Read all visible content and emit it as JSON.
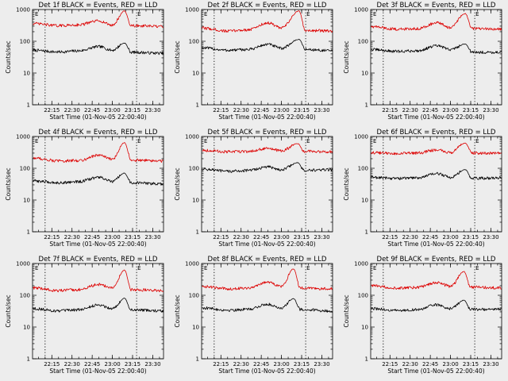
{
  "plot_title_suffix": "BLACK = Events, RED = LLD",
  "ylabel": "Counts/sec",
  "xlabel": "Start Time (01-Nov-05 22:00:40)",
  "marker_label": "E",
  "colors": {
    "background": "#ededed",
    "events": "#000000",
    "lld": "#dd0000"
  },
  "chart_data": [
    {
      "type": "line",
      "title": "Det 1f BLACK = Events, RED = LLD",
      "xlabel": "Start Time (01-Nov-05 22:00:40)",
      "ylabel": "Counts/sec",
      "x_ticks": [
        "22:15",
        "22:30",
        "22:45",
        "23:00",
        "23:15",
        "23:30"
      ],
      "y_ticks": [
        "1",
        "10",
        "100",
        "1000"
      ],
      "y_scale": "log",
      "ylim": [
        1,
        1000
      ],
      "xlim": [
        "22:00:40",
        "23:38"
      ],
      "vertical_markers": [
        "22:10",
        "23:18"
      ],
      "series": [
        {
          "color": "#000000",
          "peak_time": "23:09",
          "values": [
            {
              "x": "22:01",
              "y": 52
            },
            {
              "x": "22:20",
              "y": 46
            },
            {
              "x": "22:35",
              "y": 50
            },
            {
              "x": "22:50",
              "y": 68
            },
            {
              "x": "23:00",
              "y": 52
            },
            {
              "x": "23:09",
              "y": 88
            },
            {
              "x": "23:14",
              "y": 45
            },
            {
              "x": "23:38",
              "y": 42
            }
          ]
        },
        {
          "color": "#dd0000",
          "peak_time": "23:09",
          "values": [
            {
              "x": "22:01",
              "y": 360
            },
            {
              "x": "22:20",
              "y": 310
            },
            {
              "x": "22:35",
              "y": 330
            },
            {
              "x": "22:50",
              "y": 440
            },
            {
              "x": "23:00",
              "y": 320
            },
            {
              "x": "23:09",
              "y": 900
            },
            {
              "x": "23:14",
              "y": 310
            },
            {
              "x": "23:38",
              "y": 290
            }
          ]
        }
      ]
    },
    {
      "type": "line",
      "title": "Det 2f BLACK = Events, RED = LLD",
      "xlabel": "Start Time (01-Nov-05 22:00:40)",
      "ylabel": "Counts/sec",
      "x_ticks": [
        "22:15",
        "22:30",
        "22:45",
        "23:00",
        "23:15",
        "23:30"
      ],
      "y_ticks": [
        "1",
        "10",
        "100",
        "1000"
      ],
      "y_scale": "log",
      "ylim": [
        1,
        1000
      ],
      "xlim": [
        "22:00:40",
        "23:38"
      ],
      "vertical_markers": [
        "22:10",
        "23:18"
      ],
      "series": [
        {
          "color": "#000000",
          "peak_time": "23:13",
          "values": [
            {
              "x": "22:01",
              "y": 62
            },
            {
              "x": "22:20",
              "y": 52
            },
            {
              "x": "22:35",
              "y": 55
            },
            {
              "x": "22:50",
              "y": 80
            },
            {
              "x": "23:00",
              "y": 60
            },
            {
              "x": "23:13",
              "y": 115
            },
            {
              "x": "23:18",
              "y": 55
            },
            {
              "x": "23:38",
              "y": 50
            }
          ]
        },
        {
          "color": "#dd0000",
          "peak_time": "23:13",
          "values": [
            {
              "x": "22:01",
              "y": 260
            },
            {
              "x": "22:20",
              "y": 210
            },
            {
              "x": "22:35",
              "y": 230
            },
            {
              "x": "22:50",
              "y": 380
            },
            {
              "x": "23:00",
              "y": 260
            },
            {
              "x": "23:13",
              "y": 900
            },
            {
              "x": "23:18",
              "y": 220
            },
            {
              "x": "23:38",
              "y": 210
            }
          ]
        }
      ]
    },
    {
      "type": "line",
      "title": "Det 3f BLACK = Events, RED = LLD",
      "xlabel": "Start Time (01-Nov-05 22:00:40)",
      "ylabel": "Counts/sec",
      "x_ticks": [
        "22:15",
        "22:30",
        "22:45",
        "23:00",
        "23:15",
        "23:30"
      ],
      "y_ticks": [
        "1",
        "10",
        "100",
        "1000"
      ],
      "y_scale": "log",
      "ylim": [
        1,
        1000
      ],
      "xlim": [
        "22:00:40",
        "23:38"
      ],
      "vertical_markers": [
        "22:10",
        "23:18"
      ],
      "series": [
        {
          "color": "#000000",
          "peak_time": "23:11",
          "values": [
            {
              "x": "22:01",
              "y": 55
            },
            {
              "x": "22:20",
              "y": 48
            },
            {
              "x": "22:35",
              "y": 50
            },
            {
              "x": "22:50",
              "y": 72
            },
            {
              "x": "23:00",
              "y": 55
            },
            {
              "x": "23:11",
              "y": 82
            },
            {
              "x": "23:16",
              "y": 45
            },
            {
              "x": "23:38",
              "y": 45
            }
          ]
        },
        {
          "color": "#dd0000",
          "peak_time": "23:11",
          "values": [
            {
              "x": "22:01",
              "y": 290
            },
            {
              "x": "22:20",
              "y": 240
            },
            {
              "x": "22:35",
              "y": 250
            },
            {
              "x": "22:50",
              "y": 380
            },
            {
              "x": "23:00",
              "y": 270
            },
            {
              "x": "23:11",
              "y": 750
            },
            {
              "x": "23:16",
              "y": 250
            },
            {
              "x": "23:38",
              "y": 240
            }
          ]
        }
      ]
    },
    {
      "type": "line",
      "title": "Det 4f BLACK = Events, RED = LLD",
      "xlabel": "Start Time (01-Nov-05 22:00:40)",
      "ylabel": "Counts/sec",
      "x_ticks": [
        "22:15",
        "22:30",
        "22:45",
        "23:00",
        "23:15",
        "23:30"
      ],
      "y_ticks": [
        "1",
        "10",
        "100",
        "1000"
      ],
      "y_scale": "log",
      "ylim": [
        1,
        1000
      ],
      "xlim": [
        "22:00:40",
        "23:38"
      ],
      "vertical_markers": [
        "22:10",
        "23:18"
      ],
      "series": [
        {
          "color": "#000000",
          "peak_time": "23:09",
          "values": [
            {
              "x": "22:01",
              "y": 40
            },
            {
              "x": "22:20",
              "y": 35
            },
            {
              "x": "22:35",
              "y": 38
            },
            {
              "x": "22:50",
              "y": 52
            },
            {
              "x": "23:00",
              "y": 38
            },
            {
              "x": "23:09",
              "y": 70
            },
            {
              "x": "23:14",
              "y": 35
            },
            {
              "x": "23:38",
              "y": 32
            }
          ]
        },
        {
          "color": "#dd0000",
          "peak_time": "23:09",
          "values": [
            {
              "x": "22:01",
              "y": 210
            },
            {
              "x": "22:20",
              "y": 170
            },
            {
              "x": "22:35",
              "y": 175
            },
            {
              "x": "22:50",
              "y": 260
            },
            {
              "x": "23:00",
              "y": 190
            },
            {
              "x": "23:09",
              "y": 650
            },
            {
              "x": "23:14",
              "y": 180
            },
            {
              "x": "23:38",
              "y": 170
            }
          ]
        }
      ]
    },
    {
      "type": "line",
      "title": "Det 5f BLACK = Events, RED = LLD",
      "xlabel": "Start Time (01-Nov-05 22:00:40)",
      "ylabel": "Counts/sec",
      "x_ticks": [
        "22:15",
        "22:30",
        "22:45",
        "23:00",
        "23:15",
        "23:30"
      ],
      "y_ticks": [
        "1",
        "10",
        "100",
        "1000"
      ],
      "y_scale": "log",
      "ylim": [
        1,
        1000
      ],
      "xlim": [
        "22:00:40",
        "23:38"
      ],
      "vertical_markers": [
        "22:10",
        "23:18"
      ],
      "series": [
        {
          "color": "#000000",
          "peak_time": "23:12",
          "values": [
            {
              "x": "22:01",
              "y": 95
            },
            {
              "x": "22:20",
              "y": 80
            },
            {
              "x": "22:35",
              "y": 85
            },
            {
              "x": "22:50",
              "y": 110
            },
            {
              "x": "23:00",
              "y": 90
            },
            {
              "x": "23:12",
              "y": 150
            },
            {
              "x": "23:17",
              "y": 85
            },
            {
              "x": "23:38",
              "y": 90
            }
          ]
        },
        {
          "color": "#dd0000",
          "peak_time": "23:12",
          "values": [
            {
              "x": "22:01",
              "y": 370
            },
            {
              "x": "22:20",
              "y": 330
            },
            {
              "x": "22:35",
              "y": 340
            },
            {
              "x": "22:50",
              "y": 420
            },
            {
              "x": "23:00",
              "y": 350
            },
            {
              "x": "23:12",
              "y": 600
            },
            {
              "x": "23:17",
              "y": 340
            },
            {
              "x": "23:38",
              "y": 330
            }
          ]
        }
      ]
    },
    {
      "type": "line",
      "title": "Det 6f BLACK = Events, RED = LLD",
      "xlabel": "Start Time (01-Nov-05 22:00:40)",
      "ylabel": "Counts/sec",
      "x_ticks": [
        "22:15",
        "22:30",
        "22:45",
        "23:00",
        "23:15",
        "23:30"
      ],
      "y_ticks": [
        "1",
        "10",
        "100",
        "1000"
      ],
      "y_scale": "log",
      "ylim": [
        1,
        1000
      ],
      "xlim": [
        "22:00:40",
        "23:38"
      ],
      "vertical_markers": [
        "22:10",
        "23:18"
      ],
      "series": [
        {
          "color": "#000000",
          "peak_time": "23:11",
          "values": [
            {
              "x": "22:01",
              "y": 52
            },
            {
              "x": "22:20",
              "y": 48
            },
            {
              "x": "22:35",
              "y": 50
            },
            {
              "x": "22:50",
              "y": 68
            },
            {
              "x": "23:00",
              "y": 52
            },
            {
              "x": "23:11",
              "y": 90
            },
            {
              "x": "23:16",
              "y": 48
            },
            {
              "x": "23:38",
              "y": 50
            }
          ]
        },
        {
          "color": "#dd0000",
          "peak_time": "23:11",
          "values": [
            {
              "x": "22:01",
              "y": 310
            },
            {
              "x": "22:20",
              "y": 290
            },
            {
              "x": "22:35",
              "y": 300
            },
            {
              "x": "22:50",
              "y": 380
            },
            {
              "x": "23:00",
              "y": 310
            },
            {
              "x": "23:11",
              "y": 620
            },
            {
              "x": "23:16",
              "y": 300
            },
            {
              "x": "23:38",
              "y": 300
            }
          ]
        }
      ]
    },
    {
      "type": "line",
      "title": "Det 7f BLACK = Events, RED = LLD",
      "xlabel": "Start Time (01-Nov-05 22:00:40)",
      "ylabel": "Counts/sec",
      "x_ticks": [
        "22:15",
        "22:30",
        "22:45",
        "23:00",
        "23:15",
        "23:30"
      ],
      "y_ticks": [
        "1",
        "10",
        "100",
        "1000"
      ],
      "y_scale": "log",
      "ylim": [
        1,
        1000
      ],
      "xlim": [
        "22:00:40",
        "23:38"
      ],
      "vertical_markers": [
        "22:10",
        "23:18"
      ],
      "series": [
        {
          "color": "#000000",
          "peak_time": "23:09",
          "values": [
            {
              "x": "22:01",
              "y": 38
            },
            {
              "x": "22:20",
              "y": 32
            },
            {
              "x": "22:35",
              "y": 35
            },
            {
              "x": "22:50",
              "y": 50
            },
            {
              "x": "23:00",
              "y": 38
            },
            {
              "x": "23:09",
              "y": 80
            },
            {
              "x": "23:14",
              "y": 35
            },
            {
              "x": "23:38",
              "y": 32
            }
          ]
        },
        {
          "color": "#dd0000",
          "peak_time": "23:09",
          "values": [
            {
              "x": "22:01",
              "y": 170
            },
            {
              "x": "22:20",
              "y": 140
            },
            {
              "x": "22:35",
              "y": 150
            },
            {
              "x": "22:50",
              "y": 220
            },
            {
              "x": "23:00",
              "y": 170
            },
            {
              "x": "23:09",
              "y": 620
            },
            {
              "x": "23:14",
              "y": 150
            },
            {
              "x": "23:38",
              "y": 140
            }
          ]
        }
      ]
    },
    {
      "type": "line",
      "title": "Det 8f BLACK = Events, RED = LLD",
      "xlabel": "Start Time (01-Nov-05 22:00:40)",
      "ylabel": "Counts/sec",
      "x_ticks": [
        "22:15",
        "22:30",
        "22:45",
        "23:00",
        "23:15",
        "23:30"
      ],
      "y_ticks": [
        "1",
        "10",
        "100",
        "1000"
      ],
      "y_scale": "log",
      "ylim": [
        1,
        1000
      ],
      "xlim": [
        "22:00:40",
        "23:38"
      ],
      "vertical_markers": [
        "22:10",
        "23:18"
      ],
      "series": [
        {
          "color": "#000000",
          "peak_time": "23:09",
          "values": [
            {
              "x": "22:01",
              "y": 40
            },
            {
              "x": "22:20",
              "y": 34
            },
            {
              "x": "22:35",
              "y": 36
            },
            {
              "x": "22:50",
              "y": 52
            },
            {
              "x": "23:00",
              "y": 40
            },
            {
              "x": "23:09",
              "y": 78
            },
            {
              "x": "23:14",
              "y": 36
            },
            {
              "x": "23:38",
              "y": 32
            }
          ]
        },
        {
          "color": "#dd0000",
          "peak_time": "23:09",
          "values": [
            {
              "x": "22:01",
              "y": 190
            },
            {
              "x": "22:20",
              "y": 160
            },
            {
              "x": "22:35",
              "y": 170
            },
            {
              "x": "22:50",
              "y": 260
            },
            {
              "x": "23:00",
              "y": 190
            },
            {
              "x": "23:09",
              "y": 680
            },
            {
              "x": "23:14",
              "y": 170
            },
            {
              "x": "23:38",
              "y": 160
            }
          ]
        }
      ]
    },
    {
      "type": "line",
      "title": "Det 9f BLACK = Events, RED = LLD",
      "xlabel": "Start Time (01-Nov-05 22:00:40)",
      "ylabel": "Counts/sec",
      "x_ticks": [
        "22:15",
        "22:30",
        "22:45",
        "23:00",
        "23:15",
        "23:30"
      ],
      "y_ticks": [
        "1",
        "10",
        "100",
        "1000"
      ],
      "y_scale": "log",
      "ylim": [
        1,
        1000
      ],
      "xlim": [
        "22:00:40",
        "23:38"
      ],
      "vertical_markers": [
        "22:10",
        "23:18"
      ],
      "series": [
        {
          "color": "#000000",
          "peak_time": "23:10",
          "values": [
            {
              "x": "22:01",
              "y": 38
            },
            {
              "x": "22:20",
              "y": 33
            },
            {
              "x": "22:35",
              "y": 35
            },
            {
              "x": "22:50",
              "y": 50
            },
            {
              "x": "23:00",
              "y": 38
            },
            {
              "x": "23:10",
              "y": 70
            },
            {
              "x": "23:15",
              "y": 36
            },
            {
              "x": "23:38",
              "y": 36
            }
          ]
        },
        {
          "color": "#dd0000",
          "peak_time": "23:10",
          "values": [
            {
              "x": "22:01",
              "y": 200
            },
            {
              "x": "22:20",
              "y": 170
            },
            {
              "x": "22:35",
              "y": 175
            },
            {
              "x": "22:50",
              "y": 250
            },
            {
              "x": "23:00",
              "y": 190
            },
            {
              "x": "23:10",
              "y": 560
            },
            {
              "x": "23:15",
              "y": 180
            },
            {
              "x": "23:38",
              "y": 170
            }
          ]
        }
      ]
    }
  ]
}
